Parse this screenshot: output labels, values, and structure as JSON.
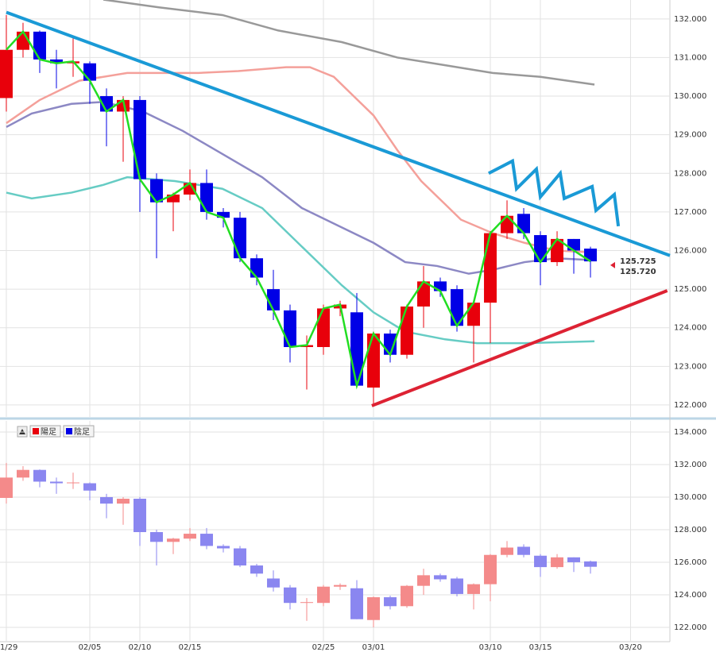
{
  "chart_data": [
    {
      "type": "candlestick",
      "x": [
        0,
        1,
        2,
        3,
        4,
        5,
        6,
        7,
        8,
        9,
        10,
        11,
        12,
        13,
        14,
        15,
        16,
        17,
        18,
        19,
        20,
        21,
        22,
        23,
        24,
        25,
        26,
        27,
        28,
        29,
        30,
        31,
        32,
        33,
        34,
        35
      ],
      "open": [
        129.95,
        131.2,
        131.67,
        130.95,
        130.85,
        130.85,
        130.0,
        129.6,
        129.9,
        127.85,
        127.25,
        127.45,
        127.75,
        127.0,
        126.85,
        125.8,
        125.0,
        124.45,
        123.5,
        123.5,
        124.5,
        124.4,
        122.45,
        123.85,
        123.3,
        124.55,
        125.2,
        125.0,
        124.05,
        124.65,
        126.45,
        126.95,
        126.4,
        125.7,
        126.3,
        126.05
      ],
      "high": [
        132.1,
        131.9,
        131.7,
        131.2,
        131.5,
        130.9,
        130.2,
        130.0,
        130.0,
        128.0,
        127.5,
        128.1,
        128.1,
        127.1,
        127.0,
        125.9,
        125.5,
        124.6,
        123.8,
        124.6,
        124.7,
        124.9,
        123.9,
        123.95,
        124.6,
        125.6,
        125.3,
        125.1,
        124.7,
        126.5,
        127.3,
        127.1,
        126.5,
        126.5,
        126.3,
        126.1
      ],
      "low": [
        129.6,
        131.0,
        130.6,
        130.2,
        130.5,
        129.8,
        128.7,
        128.3,
        127.0,
        125.8,
        126.5,
        127.3,
        126.8,
        126.6,
        125.7,
        125.1,
        124.2,
        123.1,
        122.4,
        123.3,
        124.3,
        122.5,
        122.0,
        123.1,
        123.2,
        124.0,
        124.8,
        123.9,
        123.1,
        123.6,
        126.3,
        126.3,
        125.1,
        125.6,
        125.4,
        125.3
      ],
      "close": [
        131.2,
        131.67,
        130.95,
        130.85,
        130.9,
        130.4,
        129.6,
        129.9,
        127.85,
        127.25,
        127.45,
        127.75,
        127.0,
        126.85,
        125.8,
        125.3,
        124.45,
        123.5,
        123.55,
        124.5,
        124.6,
        122.5,
        123.85,
        123.3,
        124.55,
        125.2,
        124.95,
        124.05,
        124.65,
        126.45,
        126.9,
        126.45,
        125.7,
        126.3,
        126.0,
        125.72
      ],
      "up_color": "#e8000b",
      "down_color": "#0000e6",
      "line_color": "#22dd22",
      "xlim": [
        -0.38,
        39.76
      ],
      "ylim": [
        121.69,
        132.49
      ],
      "xticks": [
        {
          "value": 0,
          "label": "01/29"
        },
        {
          "value": 5,
          "label": "02/05"
        },
        {
          "value": 8,
          "label": "02/10"
        },
        {
          "value": 11,
          "label": "02/15"
        },
        {
          "value": 19,
          "label": "02/25"
        },
        {
          "value": 22,
          "label": "03/01"
        },
        {
          "value": 29,
          "label": "03/10"
        },
        {
          "value": 32,
          "label": "03/15"
        },
        {
          "value": 37.4,
          "label": "03/20"
        }
      ],
      "yticks": [
        {
          "value": 122,
          "label": "122.000"
        },
        {
          "value": 123,
          "label": "123.000"
        },
        {
          "value": 124,
          "label": "124.000"
        },
        {
          "value": 125,
          "label": "125.000"
        },
        {
          "value": 126,
          "label": "126.000"
        },
        {
          "value": 127,
          "label": "127.000"
        },
        {
          "value": 128,
          "label": "128.000"
        },
        {
          "value": 129,
          "label": "129.000"
        },
        {
          "value": 130,
          "label": "130.000"
        },
        {
          "value": 131,
          "label": "131.000"
        },
        {
          "value": 132,
          "label": "132.000"
        }
      ],
      "grid": true,
      "series": [
        {
          "color": "#999999",
          "x": [
            5.81,
            9.14,
            12.95,
            16.29,
            20.1,
            23.43,
            26.29,
            29.14,
            32.0,
            35.24
          ],
          "values": [
            132.5,
            132.3,
            132.1,
            131.7,
            131.4,
            131.0,
            130.8,
            130.6,
            130.5,
            130.3
          ]
        },
        {
          "color": "#f4a09a",
          "x": [
            0,
            2,
            4.38,
            7.24,
            11.52,
            13.9,
            16.76,
            18.19,
            19.62,
            22.0,
            23.43,
            24.86,
            26.29,
            27.24,
            29.14,
            31.05,
            32.95,
            35.24
          ],
          "values": [
            129.3,
            129.9,
            130.4,
            130.6,
            130.6,
            130.65,
            130.75,
            130.75,
            130.5,
            129.5,
            128.6,
            127.8,
            127.2,
            126.8,
            126.45,
            126.2,
            126.0,
            125.95
          ]
        },
        {
          "color": "#8c88c4",
          "x": [
            0,
            1.52,
            3.9,
            5.81,
            8.19,
            10.57,
            12.95,
            15.33,
            17.71,
            20.1,
            22.0,
            23.9,
            25.81,
            27.71,
            29.14,
            31.05,
            32.95,
            35.24
          ],
          "values": [
            129.2,
            129.55,
            129.8,
            129.85,
            129.6,
            129.1,
            128.5,
            127.9,
            127.1,
            126.6,
            126.2,
            125.7,
            125.6,
            125.4,
            125.5,
            125.7,
            125.8,
            125.75
          ]
        },
        {
          "color": "#66ccc4",
          "x": [
            0,
            1.52,
            3.9,
            5.81,
            7.24,
            10.1,
            12.95,
            15.33,
            17.71,
            20.1,
            22.0,
            23.9,
            26.29,
            28.19,
            31.05,
            35.24
          ],
          "values": [
            127.5,
            127.35,
            127.5,
            127.7,
            127.9,
            127.8,
            127.6,
            127.1,
            126.1,
            125.1,
            124.4,
            123.9,
            123.7,
            123.6,
            123.6,
            123.65
          ]
        }
      ],
      "trendlines": [
        {
          "color": "#1a9ad6",
          "x": [
            0,
            39.76
          ],
          "values": [
            132.17,
            125.87
          ]
        },
        {
          "color": "#dd2233",
          "x": [
            21.9,
            39.6
          ],
          "values": [
            121.98,
            124.96
          ]
        },
        {
          "color": "#1a9ad6",
          "x": [
            28.9,
            30.33,
            30.57,
            31.76,
            32.0,
            33.19,
            33.43,
            35.1,
            35.33,
            36.43,
            36.67
          ],
          "values": [
            128.0,
            128.32,
            127.6,
            128.11,
            127.39,
            128.0,
            127.35,
            127.66,
            127.04,
            127.45,
            126.63
          ]
        }
      ],
      "price_labels": [
        {
          "value": 125.725,
          "label": "125.725",
          "color": "#dd2233"
        },
        {
          "value": 125.72,
          "label": "125.720",
          "color": "#1a9ac0"
        }
      ]
    },
    {
      "type": "candlestick-pale",
      "ylim": [
        121.12,
        134.68
      ],
      "yticks": [
        {
          "value": 122,
          "label": "122.000"
        },
        {
          "value": 124,
          "label": "124.000"
        },
        {
          "value": 126,
          "label": "126.000"
        },
        {
          "value": 128,
          "label": "128.000"
        },
        {
          "value": 130,
          "label": "130.000"
        },
        {
          "value": 132,
          "label": "132.000"
        },
        {
          "value": 134,
          "label": "134.000"
        }
      ],
      "up_color": "#f48a8a",
      "down_color": "#8a86f0",
      "legend": [
        {
          "name": "陽足",
          "color": "#e8000b"
        },
        {
          "name": "陰足",
          "color": "#0000e6"
        }
      ]
    }
  ]
}
